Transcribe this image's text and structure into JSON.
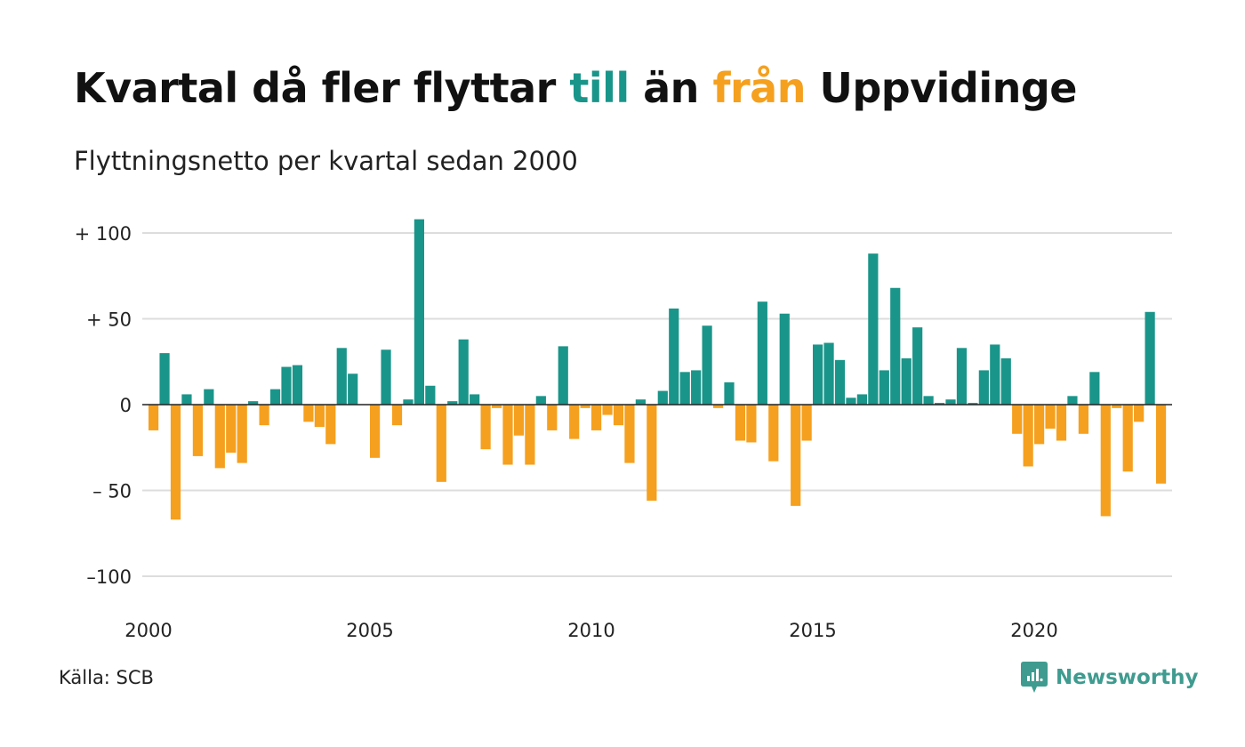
{
  "title": {
    "part1": "Kvartal då fler flyttar ",
    "till": "till",
    "part2": " än ",
    "fran": "från",
    "part3": " Uppvidinge"
  },
  "subtitle": "Flyttningsnetto per kvartal sedan 2000",
  "source": "Källa: SCB",
  "brand": "Newsworthy",
  "colors": {
    "positive": "#1a958a",
    "negative": "#f5a01e",
    "grid": "#dddddd",
    "zero": "#222222",
    "brand": "#3f9b8f"
  },
  "chart_data": {
    "type": "bar",
    "start_year": 2000,
    "x_ticks": [
      "2000",
      "2005",
      "2010",
      "2015",
      "2020"
    ],
    "y_ticks": [
      {
        "value": 100,
        "label": "+ 100"
      },
      {
        "value": 50,
        "label": "+  50"
      },
      {
        "value": 0,
        "label": "0"
      },
      {
        "value": -50,
        "label": "– 50"
      },
      {
        "value": -100,
        "label": "–100"
      }
    ],
    "ylim": [
      -115,
      110
    ],
    "grid": true,
    "values": [
      -15,
      30,
      -67,
      6,
      -30,
      9,
      -37,
      -28,
      -34,
      2,
      -12,
      9,
      22,
      23,
      -10,
      -13,
      -23,
      33,
      18,
      0,
      -31,
      32,
      -12,
      3,
      108,
      11,
      -45,
      2,
      38,
      6,
      -26,
      -2,
      -35,
      -18,
      -35,
      5,
      -15,
      34,
      -20,
      -2,
      -15,
      -6,
      -12,
      -34,
      3,
      -56,
      8,
      56,
      19,
      20,
      46,
      -2,
      13,
      -21,
      -22,
      60,
      -33,
      53,
      -59,
      -21,
      35,
      36,
      26,
      4,
      6,
      88,
      20,
      68,
      27,
      45,
      5,
      1,
      3,
      33,
      1,
      20,
      35,
      27,
      -17,
      -36,
      -23,
      -14,
      -21,
      5,
      -17,
      19,
      -65,
      -2,
      -39,
      -10,
      54,
      -46
    ]
  }
}
